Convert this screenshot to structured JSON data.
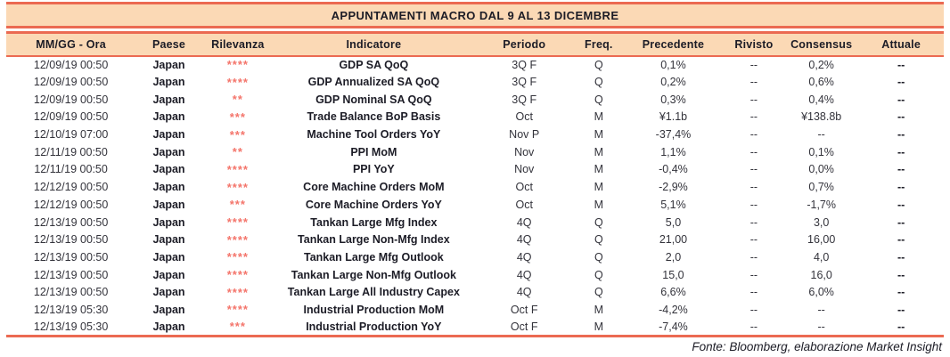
{
  "title": "APPUNTAMENTI MACRO DAL 9 AL 13 DICEMBRE",
  "footer": "Fonte: Bloomberg, elaborazione Market Insight",
  "colors": {
    "accent_border": "#EB6A52",
    "band_background": "#FBD9B5",
    "stars": "#F4756B",
    "text_dark": "#1C1C26"
  },
  "table": {
    "columns": [
      "MM/GG - Ora",
      "Paese",
      "Rilevanza",
      "Indicatore",
      "Periodo",
      "Freq.",
      "Precedente",
      "Rivisto",
      "Consensus",
      "Attuale"
    ],
    "rows": [
      {
        "datetime": "12/09/19 00:50",
        "paese": "Japan",
        "rilevanza": "****",
        "indicatore": "GDP SA QoQ",
        "periodo": "3Q F",
        "freq": "Q",
        "precedente": "0,1%",
        "rivisto": "--",
        "consensus": "0,2%",
        "attuale": "--"
      },
      {
        "datetime": "12/09/19 00:50",
        "paese": "Japan",
        "rilevanza": "****",
        "indicatore": "GDP Annualized SA QoQ",
        "periodo": "3Q F",
        "freq": "Q",
        "precedente": "0,2%",
        "rivisto": "--",
        "consensus": "0,6%",
        "attuale": "--"
      },
      {
        "datetime": "12/09/19 00:50",
        "paese": "Japan",
        "rilevanza": "**",
        "indicatore": "GDP Nominal SA QoQ",
        "periodo": "3Q F",
        "freq": "Q",
        "precedente": "0,3%",
        "rivisto": "--",
        "consensus": "0,4%",
        "attuale": "--"
      },
      {
        "datetime": "12/09/19 00:50",
        "paese": "Japan",
        "rilevanza": "***",
        "indicatore": "Trade Balance BoP Basis",
        "periodo": "Oct",
        "freq": "M",
        "precedente": "¥1.1b",
        "rivisto": "--",
        "consensus": "¥138.8b",
        "attuale": "--"
      },
      {
        "datetime": "12/10/19 07:00",
        "paese": "Japan",
        "rilevanza": "***",
        "indicatore": "Machine Tool Orders YoY",
        "periodo": "Nov P",
        "freq": "M",
        "precedente": "-37,4%",
        "rivisto": "--",
        "consensus": "--",
        "attuale": "--"
      },
      {
        "datetime": "12/11/19 00:50",
        "paese": "Japan",
        "rilevanza": "**",
        "indicatore": "PPI MoM",
        "periodo": "Nov",
        "freq": "M",
        "precedente": "1,1%",
        "rivisto": "--",
        "consensus": "0,1%",
        "attuale": "--"
      },
      {
        "datetime": "12/11/19 00:50",
        "paese": "Japan",
        "rilevanza": "****",
        "indicatore": "PPI YoY",
        "periodo": "Nov",
        "freq": "M",
        "precedente": "-0,4%",
        "rivisto": "--",
        "consensus": "0,0%",
        "attuale": "--"
      },
      {
        "datetime": "12/12/19 00:50",
        "paese": "Japan",
        "rilevanza": "****",
        "indicatore": "Core Machine Orders MoM",
        "periodo": "Oct",
        "freq": "M",
        "precedente": "-2,9%",
        "rivisto": "--",
        "consensus": "0,7%",
        "attuale": "--"
      },
      {
        "datetime": "12/12/19 00:50",
        "paese": "Japan",
        "rilevanza": "***",
        "indicatore": "Core Machine Orders YoY",
        "periodo": "Oct",
        "freq": "M",
        "precedente": "5,1%",
        "rivisto": "--",
        "consensus": "-1,7%",
        "attuale": "--"
      },
      {
        "datetime": "12/13/19 00:50",
        "paese": "Japan",
        "rilevanza": "****",
        "indicatore": "Tankan Large Mfg Index",
        "periodo": "4Q",
        "freq": "Q",
        "precedente": "5,0",
        "rivisto": "--",
        "consensus": "3,0",
        "attuale": "--"
      },
      {
        "datetime": "12/13/19 00:50",
        "paese": "Japan",
        "rilevanza": "****",
        "indicatore": "Tankan Large Non-Mfg Index",
        "periodo": "4Q",
        "freq": "Q",
        "precedente": "21,00",
        "rivisto": "--",
        "consensus": "16,00",
        "attuale": "--"
      },
      {
        "datetime": "12/13/19 00:50",
        "paese": "Japan",
        "rilevanza": "****",
        "indicatore": "Tankan Large Mfg Outlook",
        "periodo": "4Q",
        "freq": "Q",
        "precedente": "2,0",
        "rivisto": "--",
        "consensus": "4,0",
        "attuale": "--"
      },
      {
        "datetime": "12/13/19 00:50",
        "paese": "Japan",
        "rilevanza": "****",
        "indicatore": "Tankan Large Non-Mfg Outlook",
        "periodo": "4Q",
        "freq": "Q",
        "precedente": "15,0",
        "rivisto": "--",
        "consensus": "16,0",
        "attuale": "--"
      },
      {
        "datetime": "12/13/19 00:50",
        "paese": "Japan",
        "rilevanza": "****",
        "indicatore": "Tankan Large All Industry Capex",
        "periodo": "4Q",
        "freq": "Q",
        "precedente": "6,6%",
        "rivisto": "--",
        "consensus": "6,0%",
        "attuale": "--"
      },
      {
        "datetime": "12/13/19 05:30",
        "paese": "Japan",
        "rilevanza": "****",
        "indicatore": "Industrial Production MoM",
        "periodo": "Oct F",
        "freq": "M",
        "precedente": "-4,2%",
        "rivisto": "--",
        "consensus": "--",
        "attuale": "--"
      },
      {
        "datetime": "12/13/19 05:30",
        "paese": "Japan",
        "rilevanza": "***",
        "indicatore": "Industrial Production YoY",
        "periodo": "Oct F",
        "freq": "M",
        "precedente": "-7,4%",
        "rivisto": "--",
        "consensus": "--",
        "attuale": "--"
      }
    ]
  }
}
